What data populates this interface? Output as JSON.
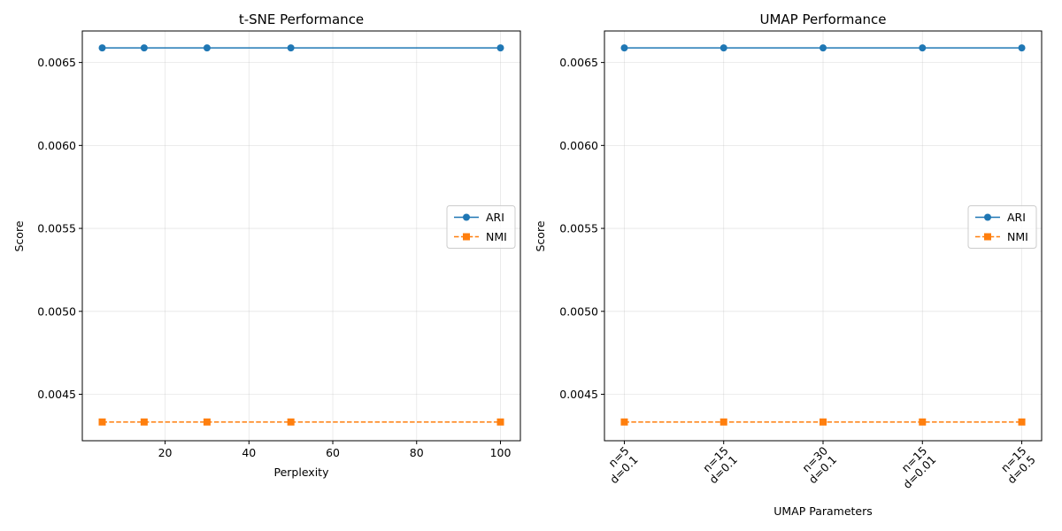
{
  "chart_data": [
    {
      "type": "line",
      "title": "t-SNE Performance",
      "xlabel": "Perplexity",
      "ylabel": "Score",
      "x": [
        5,
        15,
        30,
        50,
        100
      ],
      "xlim": [
        0.25,
        104.75
      ],
      "xticks": [
        20,
        40,
        60,
        80,
        100
      ],
      "ylim": [
        0.00422,
        0.00669
      ],
      "yticks": [
        0.0045,
        0.005,
        0.0055,
        0.006,
        0.0065
      ],
      "ytick_labels": [
        "0.0045",
        "0.0050",
        "0.0055",
        "0.0060",
        "0.0065"
      ],
      "grid": true,
      "legend_position": "center-right",
      "series": [
        {
          "name": "ARI",
          "values": [
            0.006588,
            0.006588,
            0.006588,
            0.006588,
            0.006588
          ],
          "color": "#1f77b4",
          "marker": "circle",
          "linestyle": "solid"
        },
        {
          "name": "NMI",
          "values": [
            0.004333,
            0.004333,
            0.004333,
            0.004333,
            0.004333
          ],
          "color": "#ff7f0e",
          "marker": "square",
          "linestyle": "dashed"
        }
      ]
    },
    {
      "type": "line",
      "title": "UMAP Performance",
      "xlabel": "UMAP Parameters",
      "ylabel": "Score",
      "categories": [
        [
          "n=5",
          "d=0.1"
        ],
        [
          "n=15",
          "d=0.1"
        ],
        [
          "n=30",
          "d=0.1"
        ],
        [
          "n=15",
          "d=0.01"
        ],
        [
          "n=15",
          "d=0.5"
        ]
      ],
      "ylim": [
        0.00422,
        0.00669
      ],
      "yticks": [
        0.0045,
        0.005,
        0.0055,
        0.006,
        0.0065
      ],
      "ytick_labels": [
        "0.0045",
        "0.0050",
        "0.0055",
        "0.0060",
        "0.0065"
      ],
      "grid": true,
      "legend_position": "center-right",
      "xtick_rotation": 45,
      "series": [
        {
          "name": "ARI",
          "values": [
            0.006588,
            0.006588,
            0.006588,
            0.006588,
            0.006588
          ],
          "color": "#1f77b4",
          "marker": "circle",
          "linestyle": "solid"
        },
        {
          "name": "NMI",
          "values": [
            0.004333,
            0.004333,
            0.004333,
            0.004333,
            0.004333
          ],
          "color": "#ff7f0e",
          "marker": "square",
          "linestyle": "dashed"
        }
      ]
    }
  ]
}
